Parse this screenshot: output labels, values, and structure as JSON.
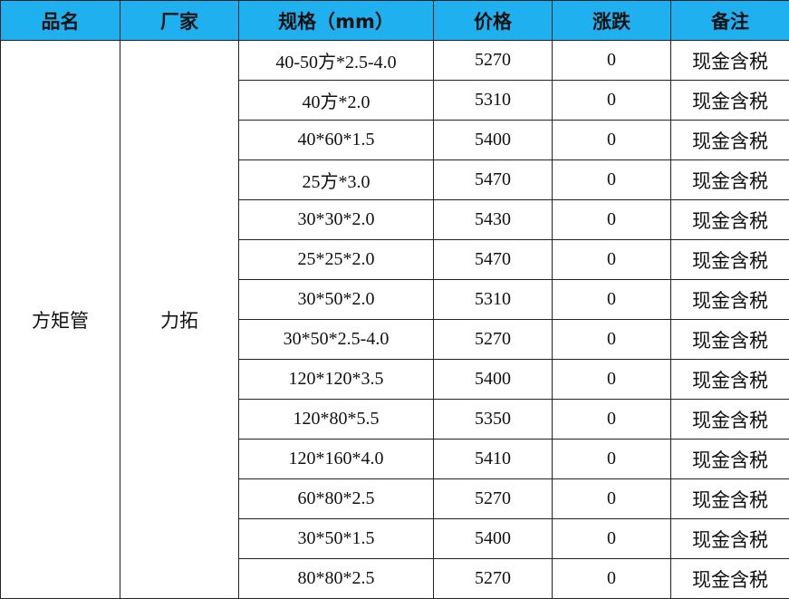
{
  "header": {
    "colors": {
      "header_bg": "#1fb1ef"
    },
    "columns": [
      "品名",
      "厂家",
      "规格（mm）",
      "价格",
      "涨跌",
      "备注"
    ]
  },
  "product": "方矩管",
  "maker": "力拓",
  "rows": [
    {
      "spec": "40-50方*2.5-4.0",
      "price": "5270",
      "change": "0",
      "note": "现金含税"
    },
    {
      "spec": "40方*2.0",
      "price": "5310",
      "change": "0",
      "note": "现金含税"
    },
    {
      "spec": "40*60*1.5",
      "price": "5400",
      "change": "0",
      "note": "现金含税"
    },
    {
      "spec": "25方*3.0",
      "price": "5470",
      "change": "0",
      "note": "现金含税"
    },
    {
      "spec": "30*30*2.0",
      "price": "5430",
      "change": "0",
      "note": "现金含税"
    },
    {
      "spec": "25*25*2.0",
      "price": "5470",
      "change": "0",
      "note": "现金含税"
    },
    {
      "spec": "30*50*2.0",
      "price": "5310",
      "change": "0",
      "note": "现金含税"
    },
    {
      "spec": "30*50*2.5-4.0",
      "price": "5270",
      "change": "0",
      "note": "现金含税"
    },
    {
      "spec": "120*120*3.5",
      "price": "5400",
      "change": "0",
      "note": "现金含税"
    },
    {
      "spec": "120*80*5.5",
      "price": "5350",
      "change": "0",
      "note": "现金含税"
    },
    {
      "spec": "120*160*4.0",
      "price": "5410",
      "change": "0",
      "note": "现金含税"
    },
    {
      "spec": "60*80*2.5",
      "price": "5270",
      "change": "0",
      "note": "现金含税"
    },
    {
      "spec": "30*50*1.5",
      "price": "5400",
      "change": "0",
      "note": "现金含税"
    },
    {
      "spec": "80*80*2.5",
      "price": "5270",
      "change": "0",
      "note": "现金含税"
    }
  ]
}
